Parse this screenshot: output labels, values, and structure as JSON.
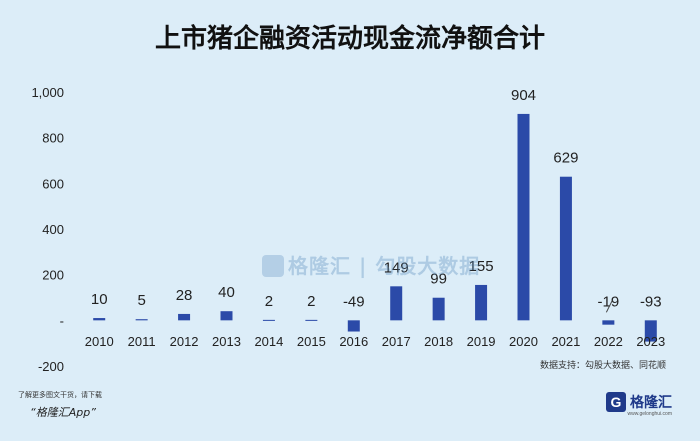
{
  "chart_data": {
    "type": "bar",
    "title": "上市猪企融资活动现金流净额合计",
    "categories": [
      "2010",
      "2011",
      "2012",
      "2013",
      "2014",
      "2015",
      "2016",
      "2017",
      "2018",
      "2019",
      "2020",
      "2021",
      "2022",
      "2023"
    ],
    "values": [
      10,
      5,
      28,
      40,
      2,
      2,
      -49,
      149,
      99,
      155,
      904,
      629,
      -19,
      -93
    ],
    "data_labels": [
      "10",
      "5",
      "28",
      "40",
      "2",
      "2",
      "-49",
      "149",
      "99",
      "155",
      "904",
      "629",
      "-19",
      "-93"
    ],
    "yticks": [
      "1,000",
      "800",
      "600",
      "400",
      "200",
      "-",
      "-200"
    ],
    "ylim": [
      -200,
      1000
    ],
    "bar_color": "#2b4aa8",
    "xlabel": "",
    "ylabel": "",
    "grid": false,
    "legend": "none"
  },
  "watermark": "格隆汇 | 勾股大数据",
  "source_note": "数据支持：勾股大数据、同花顺",
  "footer": {
    "note": "了解更多图文干货，请下载",
    "app": "“格隆汇App”",
    "logo_letter": "G",
    "logo_text": "格隆汇",
    "logo_url": "www.gelonghui.com"
  }
}
